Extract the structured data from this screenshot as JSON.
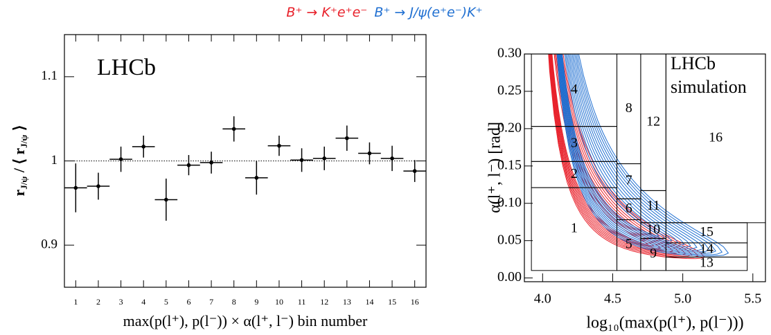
{
  "header": [
    {
      "name": "B⁺ → K⁺e⁺e⁻",
      "color": "#e8202a"
    },
    {
      "name": "B⁺ → J/ψ(e⁺e⁻)K⁺",
      "color": "#1f6fd1"
    }
  ],
  "chart_data": [
    {
      "type": "errorbar",
      "annotation": "LHCb",
      "xlabel": "max(p(l⁺), p(l⁻)) × α(l⁺, l⁻) bin number",
      "ylabel": [
        "r",
        "J/ψ",
        " / ⟨ r",
        "J/ψ",
        " ⟩"
      ],
      "x": [
        1,
        2,
        3,
        4,
        5,
        6,
        7,
        8,
        9,
        10,
        11,
        12,
        13,
        14,
        15,
        16
      ],
      "values": [
        0.968,
        0.97,
        1.002,
        1.017,
        0.954,
        0.995,
        0.998,
        1.038,
        0.98,
        1.018,
        1.001,
        1.003,
        1.027,
        1.009,
        1.003,
        0.988
      ],
      "errors": [
        0.029,
        0.016,
        0.015,
        0.013,
        0.025,
        0.012,
        0.013,
        0.015,
        0.02,
        0.012,
        0.014,
        0.014,
        0.015,
        0.013,
        0.015,
        0.013
      ],
      "xerr": 0.5,
      "color": "#000000",
      "refline": 1,
      "xlim": [
        0.5,
        16.5
      ],
      "ylim": [
        0.85,
        1.15
      ],
      "xticks": [
        1,
        2,
        3,
        4,
        5,
        6,
        7,
        8,
        9,
        10,
        11,
        12,
        13,
        14,
        15,
        16
      ],
      "yticks": [
        0.9,
        1,
        1.1
      ]
    },
    {
      "type": "bin-map",
      "annotation": [
        "LHCb",
        "simulation"
      ],
      "xlabel": "log₁₀(max(p(l⁺), p(l⁻)))",
      "ylabel": "α(l⁺, l⁻) [rad]",
      "xlim": [
        3.87,
        5.59
      ],
      "ylim": [
        -0.005,
        0.3
      ],
      "xticks": [
        {
          "value": 4.0,
          "label": "4.0"
        },
        {
          "value": 4.5,
          "label": "4.5"
        },
        {
          "value": 5.0,
          "label": "5.0"
        },
        {
          "value": 5.5,
          "label": "5.5"
        }
      ],
      "yticks": [
        {
          "value": 0,
          "label": "0.00"
        },
        {
          "value": 0.05,
          "label": "0.05"
        },
        {
          "value": 0.1,
          "label": "0.10"
        },
        {
          "value": 0.15,
          "label": "0.15"
        },
        {
          "value": 0.2,
          "label": "0.20"
        },
        {
          "value": 0.25,
          "label": "0.25"
        },
        {
          "value": 0.3,
          "label": "0.30"
        }
      ],
      "bins": [
        {
          "label": "1",
          "x": [
            3.92,
            4.53
          ],
          "y": [
            0.01,
            0.121
          ]
        },
        {
          "label": "2",
          "x": [
            3.92,
            4.53
          ],
          "y": [
            0.121,
            0.156
          ]
        },
        {
          "label": "3",
          "x": [
            3.92,
            4.53
          ],
          "y": [
            0.156,
            0.203
          ]
        },
        {
          "label": "4",
          "x": [
            3.92,
            4.53
          ],
          "y": [
            0.203,
            0.3
          ]
        },
        {
          "label": "5",
          "x": [
            4.53,
            4.7
          ],
          "y": [
            0.01,
            0.078
          ]
        },
        {
          "label": "6",
          "x": [
            4.53,
            4.7
          ],
          "y": [
            0.078,
            0.106
          ]
        },
        {
          "label": "7",
          "x": [
            4.53,
            4.7
          ],
          "y": [
            0.106,
            0.153
          ]
        },
        {
          "label": "8",
          "x": [
            4.53,
            4.7
          ],
          "y": [
            0.153,
            0.3
          ]
        },
        {
          "label": "9",
          "x": [
            4.7,
            4.88
          ],
          "y": [
            0.01,
            0.053
          ]
        },
        {
          "label": "10",
          "x": [
            4.7,
            4.88
          ],
          "y": [
            0.053,
            0.074
          ]
        },
        {
          "label": "11",
          "x": [
            4.7,
            4.88
          ],
          "y": [
            0.074,
            0.117
          ]
        },
        {
          "label": "12",
          "x": [
            4.7,
            4.88
          ],
          "y": [
            0.117,
            0.3
          ]
        },
        {
          "label": "13",
          "x": [
            4.88,
            5.46
          ],
          "y": [
            0.01,
            0.028
          ]
        },
        {
          "label": "14",
          "x": [
            4.88,
            5.46
          ],
          "y": [
            0.028,
            0.047
          ]
        },
        {
          "label": "15",
          "x": [
            4.88,
            5.46
          ],
          "y": [
            0.047,
            0.074
          ]
        },
        {
          "label": "16",
          "x": [
            4.88,
            5.59
          ],
          "y": [
            0.074,
            0.3
          ]
        }
      ]
    }
  ]
}
